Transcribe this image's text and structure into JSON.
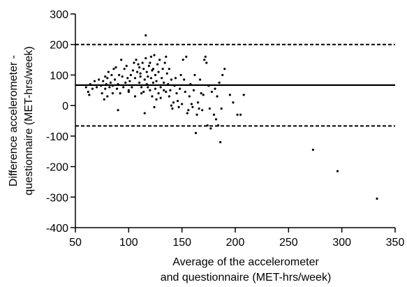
{
  "chart_data": {
    "type": "scatter",
    "xlabel_line1": "Average of the accelerometer",
    "xlabel_line2": "and questionnaire (MET-hrs/week)",
    "ylabel_line1": "Difference accelerometer -",
    "ylabel_line2": "questionnaire (MET-hrs/week)",
    "xlim": [
      50,
      350
    ],
    "ylim": [
      -400,
      300
    ],
    "x_ticks": [
      50,
      100,
      150,
      200,
      250,
      300,
      350
    ],
    "y_ticks": [
      300,
      200,
      100,
      0,
      -100,
      -200,
      -300,
      -400
    ],
    "mean_line": 67,
    "upper_limit": 200,
    "lower_limit": -67,
    "grid": false,
    "legend": "none",
    "points": [
      [
        60,
        60
      ],
      [
        62,
        45
      ],
      [
        63,
        35
      ],
      [
        64,
        70
      ],
      [
        66,
        55
      ],
      [
        68,
        80
      ],
      [
        70,
        60
      ],
      [
        72,
        85
      ],
      [
        74,
        65
      ],
      [
        75,
        40
      ],
      [
        76,
        80
      ],
      [
        77,
        20
      ],
      [
        78,
        55
      ],
      [
        78,
        95
      ],
      [
        79,
        70
      ],
      [
        80,
        90
      ],
      [
        80,
        30
      ],
      [
        81,
        110
      ],
      [
        82,
        60
      ],
      [
        83,
        75
      ],
      [
        84,
        100
      ],
      [
        85,
        65
      ],
      [
        85,
        40
      ],
      [
        86,
        120
      ],
      [
        87,
        85
      ],
      [
        88,
        125
      ],
      [
        89,
        55
      ],
      [
        90,
        -15
      ],
      [
        90,
        70
      ],
      [
        91,
        100
      ],
      [
        92,
        40
      ],
      [
        93,
        150
      ],
      [
        94,
        95
      ],
      [
        95,
        60
      ],
      [
        96,
        120
      ],
      [
        97,
        75
      ],
      [
        98,
        130
      ],
      [
        99,
        90
      ],
      [
        100,
        50
      ],
      [
        100,
        45
      ],
      [
        101,
        80
      ],
      [
        102,
        100
      ],
      [
        103,
        60
      ],
      [
        104,
        115
      ],
      [
        105,
        140
      ],
      [
        106,
        30
      ],
      [
        106,
        90
      ],
      [
        107,
        150
      ],
      [
        108,
        110
      ],
      [
        109,
        135
      ],
      [
        110,
        75
      ],
      [
        110,
        125
      ],
      [
        111,
        95
      ],
      [
        111,
        105
      ],
      [
        112,
        60
      ],
      [
        112,
        40
      ],
      [
        113,
        140
      ],
      [
        114,
        120
      ],
      [
        114,
        45
      ],
      [
        115,
        85
      ],
      [
        115,
        -25
      ],
      [
        116,
        155
      ],
      [
        116,
        230
      ],
      [
        117,
        110
      ],
      [
        117,
        70
      ],
      [
        118,
        60
      ],
      [
        118,
        95
      ],
      [
        119,
        130
      ],
      [
        120,
        50
      ],
      [
        120,
        140
      ],
      [
        121,
        160
      ],
      [
        121,
        90
      ],
      [
        122,
        115
      ],
      [
        122,
        30
      ],
      [
        123,
        75
      ],
      [
        123,
        120
      ],
      [
        124,
        165
      ],
      [
        124,
        -5
      ],
      [
        125,
        55
      ],
      [
        125,
        100
      ],
      [
        126,
        20
      ],
      [
        126,
        80
      ],
      [
        127,
        135
      ],
      [
        128,
        40
      ],
      [
        128,
        110
      ],
      [
        129,
        150
      ],
      [
        130,
        60
      ],
      [
        130,
        25
      ],
      [
        131,
        90
      ],
      [
        132,
        120
      ],
      [
        133,
        75
      ],
      [
        133,
        50
      ],
      [
        134,
        140
      ],
      [
        135,
        45
      ],
      [
        135,
        160
      ],
      [
        136,
        105
      ],
      [
        137,
        70
      ],
      [
        138,
        120
      ],
      [
        138,
        30
      ],
      [
        139,
        50
      ],
      [
        140,
        0
      ],
      [
        140,
        85
      ],
      [
        141,
        -10
      ],
      [
        142,
        10
      ],
      [
        143,
        65
      ],
      [
        144,
        90
      ],
      [
        145,
        40
      ],
      [
        146,
        15
      ],
      [
        147,
        -5
      ],
      [
        148,
        55
      ],
      [
        149,
        100
      ],
      [
        150,
        5
      ],
      [
        151,
        150
      ],
      [
        152,
        85
      ],
      [
        153,
        45
      ],
      [
        154,
        160
      ],
      [
        155,
        -25
      ],
      [
        156,
        -15
      ],
      [
        157,
        30
      ],
      [
        158,
        70
      ],
      [
        159,
        5
      ],
      [
        160,
        -5
      ],
      [
        161,
        50
      ],
      [
        162,
        100
      ],
      [
        163,
        -90
      ],
      [
        164,
        -30
      ],
      [
        165,
        10
      ],
      [
        166,
        -10
      ],
      [
        167,
        85
      ],
      [
        168,
        40
      ],
      [
        169,
        -15
      ],
      [
        170,
        35
      ],
      [
        171,
        150
      ],
      [
        172,
        160
      ],
      [
        173,
        140
      ],
      [
        174,
        -65
      ],
      [
        175,
        65
      ],
      [
        176,
        -10
      ],
      [
        177,
        -75
      ],
      [
        178,
        45
      ],
      [
        180,
        -30
      ],
      [
        181,
        55
      ],
      [
        182,
        -45
      ],
      [
        183,
        30
      ],
      [
        184,
        -65
      ],
      [
        185,
        75
      ],
      [
        186,
        -120
      ],
      [
        187,
        -10
      ],
      [
        188,
        100
      ],
      [
        190,
        120
      ],
      [
        195,
        35
      ],
      [
        198,
        10
      ],
      [
        202,
        -30
      ],
      [
        205,
        -30
      ],
      [
        208,
        35
      ],
      [
        273,
        -145
      ],
      [
        296,
        -215
      ],
      [
        333,
        -305
      ]
    ]
  }
}
